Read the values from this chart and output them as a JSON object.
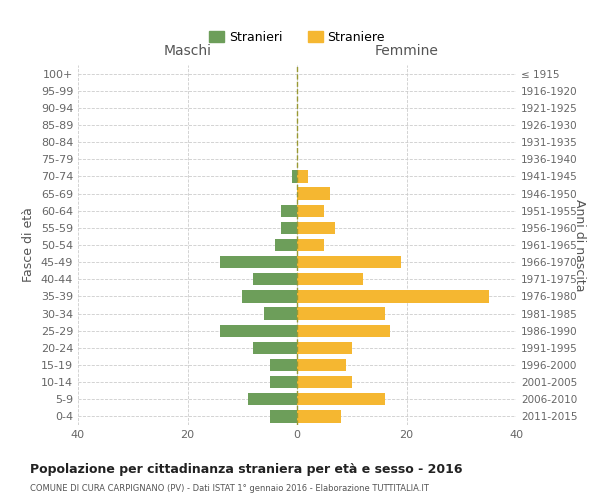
{
  "age_groups": [
    "0-4",
    "5-9",
    "10-14",
    "15-19",
    "20-24",
    "25-29",
    "30-34",
    "35-39",
    "40-44",
    "45-49",
    "50-54",
    "55-59",
    "60-64",
    "65-69",
    "70-74",
    "75-79",
    "80-84",
    "85-89",
    "90-94",
    "95-99",
    "100+"
  ],
  "birth_years": [
    "2011-2015",
    "2006-2010",
    "2001-2005",
    "1996-2000",
    "1991-1995",
    "1986-1990",
    "1981-1985",
    "1976-1980",
    "1971-1975",
    "1966-1970",
    "1961-1965",
    "1956-1960",
    "1951-1955",
    "1946-1950",
    "1941-1945",
    "1936-1940",
    "1931-1935",
    "1926-1930",
    "1921-1925",
    "1916-1920",
    "≤ 1915"
  ],
  "males": [
    5,
    9,
    5,
    5,
    8,
    14,
    6,
    10,
    8,
    14,
    4,
    3,
    3,
    0,
    1,
    0,
    0,
    0,
    0,
    0,
    0
  ],
  "females": [
    8,
    16,
    10,
    9,
    10,
    17,
    16,
    35,
    12,
    19,
    5,
    7,
    5,
    6,
    2,
    0,
    0,
    0,
    0,
    0,
    0
  ],
  "male_color": "#6d9e5a",
  "female_color": "#f5b731",
  "background_color": "#ffffff",
  "grid_color": "#cccccc",
  "title": "Popolazione per cittadinanza straniera per età e sesso - 2016",
  "subtitle": "COMUNE DI CURA CARPIGNANO (PV) - Dati ISTAT 1° gennaio 2016 - Elaborazione TUTTITALIA.IT",
  "xlabel_left": "Maschi",
  "xlabel_right": "Femmine",
  "ylabel_left": "Fasce di età",
  "ylabel_right": "Anni di nascita",
  "legend_male": "Stranieri",
  "legend_female": "Straniere",
  "xlim": 40
}
